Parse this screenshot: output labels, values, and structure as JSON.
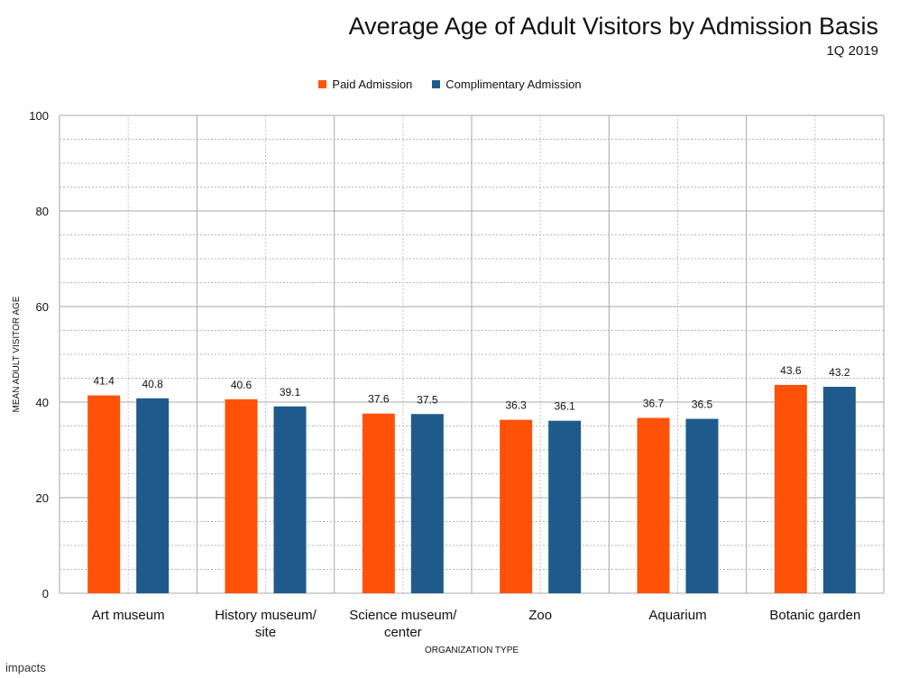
{
  "logo_text": "impacts",
  "chart_data": {
    "type": "bar",
    "title": "Average Age of Adult Visitors by Admission Basis",
    "subtitle": "1Q 2019",
    "xlabel": "ORGANIZATION TYPE",
    "ylabel": "MEAN ADULT VISITOR AGE",
    "ylim": [
      0,
      100
    ],
    "yticks": [
      0,
      20,
      40,
      60,
      80,
      100
    ],
    "categories": [
      [
        "Art museum"
      ],
      [
        "History museum/",
        "site"
      ],
      [
        "Science museum/",
        "center"
      ],
      [
        "Zoo"
      ],
      [
        "Aquarium"
      ],
      [
        "Botanic garden"
      ]
    ],
    "series": [
      {
        "name": "Paid Admission",
        "color": "#FF5208",
        "values": [
          41.4,
          40.6,
          37.6,
          36.3,
          36.7,
          43.6
        ]
      },
      {
        "name": "Complimentary Admission",
        "color": "#1F5A8C",
        "values": [
          40.8,
          39.1,
          37.5,
          36.1,
          36.5,
          43.2
        ]
      }
    ],
    "grid": true,
    "minor_grid": true,
    "legend_position": "top-center",
    "data_labels": true
  }
}
